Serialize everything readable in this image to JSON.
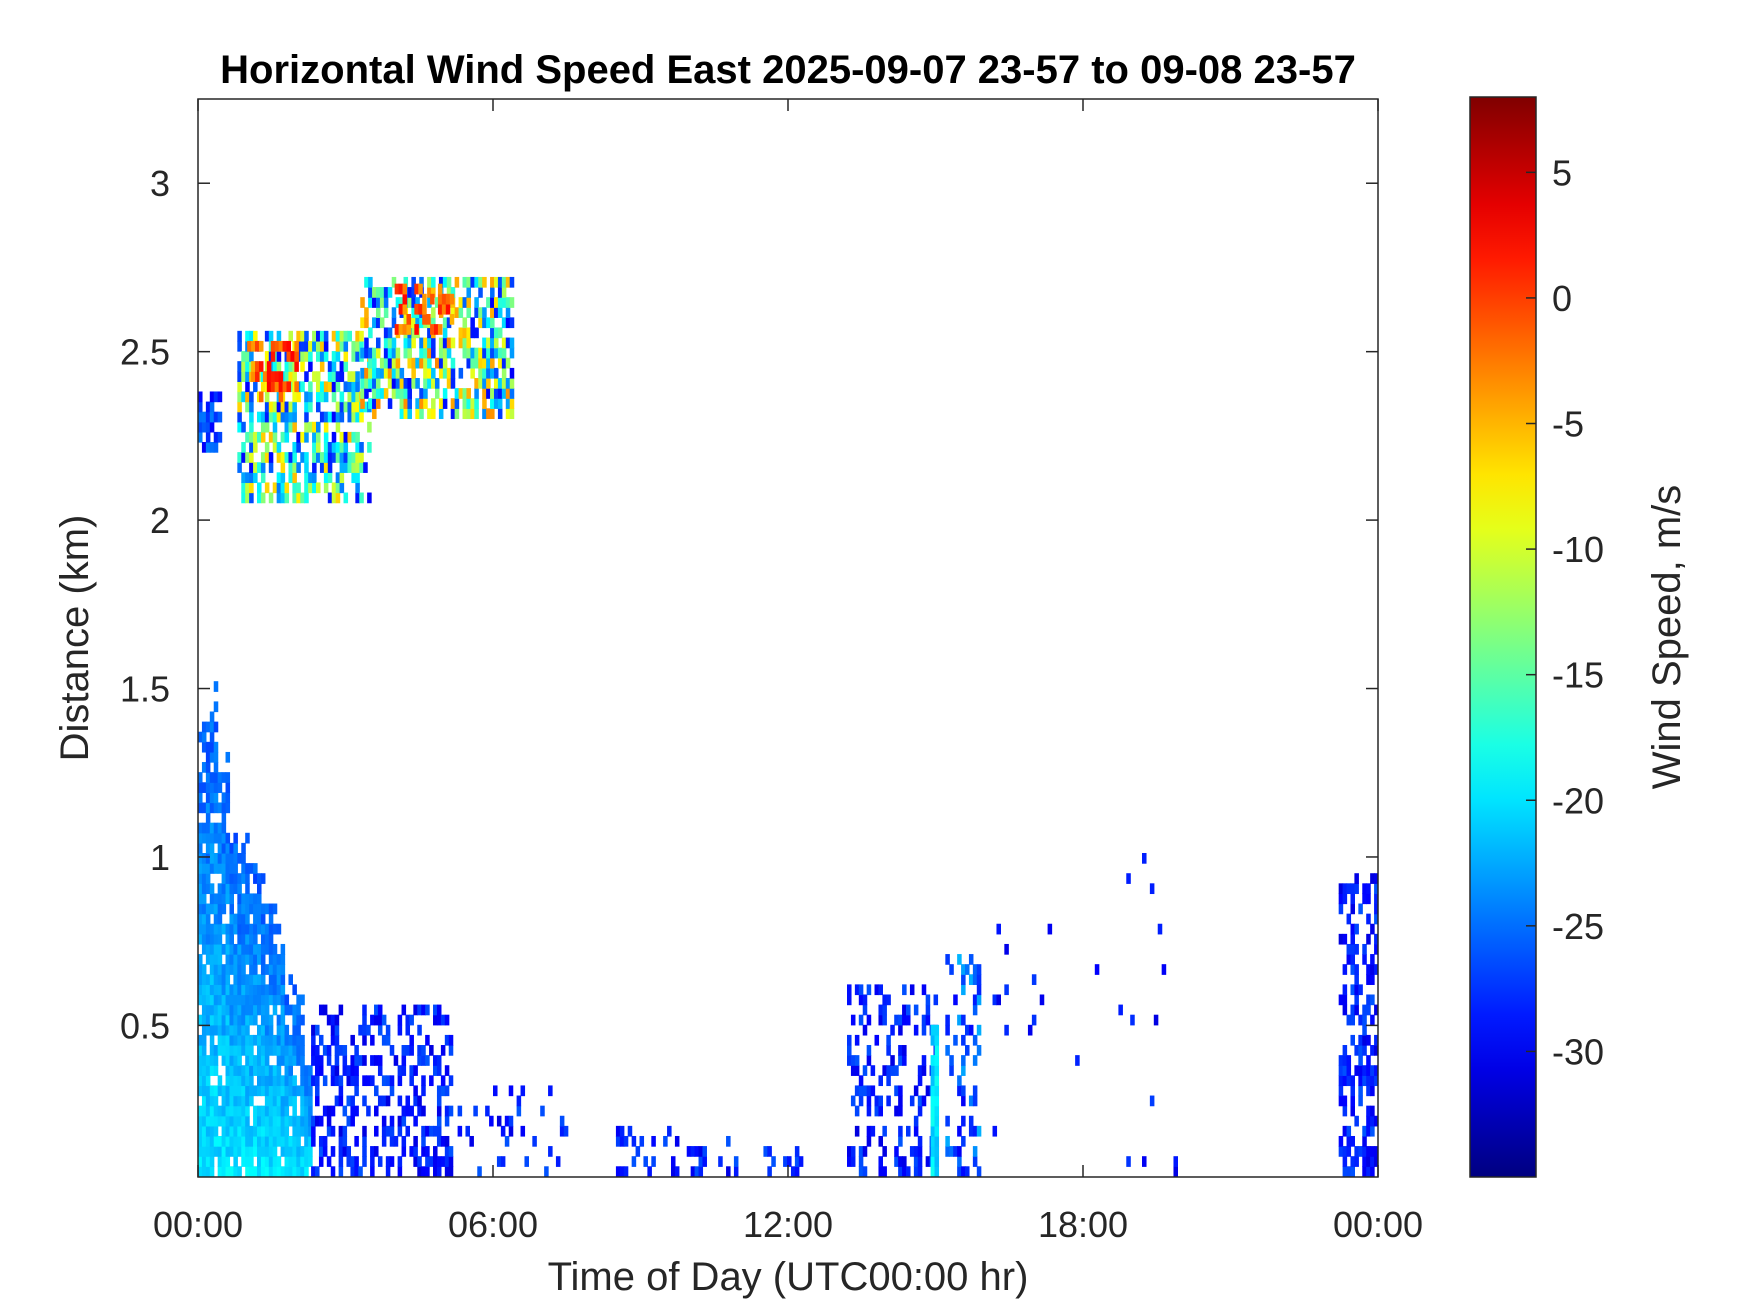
{
  "chart_data": {
    "type": "heatmap",
    "title": "Horizontal Wind Speed East 2025-09-07 23-57 to 09-08 23-57",
    "xlabel": "Time of Day (UTC00:00 hr)",
    "ylabel": "Distance (km)",
    "xlim": [
      0,
      24
    ],
    "ylim": [
      0.05,
      3.25
    ],
    "x_ticks": [
      0,
      6,
      12,
      18,
      24
    ],
    "x_tick_labels": [
      "00:00",
      "06:00",
      "12:00",
      "18:00",
      "00:00"
    ],
    "y_ticks": [
      0.5,
      1,
      1.5,
      2,
      2.5,
      3
    ],
    "y_tick_labels": [
      "0.5",
      "1",
      "1.5",
      "2",
      "2.5",
      "3"
    ],
    "colorbar": {
      "label": "Wind Speed, m/s",
      "colormap": "jet",
      "range": [
        -35,
        8
      ],
      "ticks": [
        -30,
        -25,
        -20,
        -15,
        -10,
        -5,
        0,
        5
      ],
      "tick_labels": [
        "-30",
        "-25",
        "-20",
        "-15",
        "-10",
        "-5",
        "0",
        "5"
      ]
    },
    "regions": [
      {
        "x": [
          0.0,
          2.3
        ],
        "y": [
          0.05,
          1.0
        ],
        "top_km": [
          1.4,
          1.5,
          1.3,
          1.1,
          1.05,
          1.0,
          0.95,
          0.85,
          0.8,
          0.65,
          0.6,
          0.4
        ],
        "value_range": [
          -26,
          -20
        ],
        "density": 0.9
      },
      {
        "x": [
          2.3,
          5.2
        ],
        "y": [
          0.05,
          0.55
        ],
        "value_range": [
          -31,
          -26
        ],
        "density": 0.45
      },
      {
        "x": [
          5.2,
          7.5
        ],
        "y": [
          0.05,
          0.3
        ],
        "value_range": [
          -31,
          -26
        ],
        "density": 0.12
      },
      {
        "x": [
          8.5,
          11.0
        ],
        "y": [
          0.05,
          0.2
        ],
        "value_range": [
          -31,
          -26
        ],
        "density": 0.3
      },
      {
        "x": [
          11.5,
          12.3
        ],
        "y": [
          0.05,
          0.13
        ],
        "value_range": [
          -31,
          -26
        ],
        "density": 0.35
      },
      {
        "x": [
          13.2,
          15.0
        ],
        "y": [
          0.05,
          0.6
        ],
        "value_range": [
          -31,
          -26
        ],
        "density": 0.35
      },
      {
        "x": [
          14.9,
          15.1
        ],
        "y": [
          0.05,
          0.5
        ],
        "value_range": [
          -22,
          -18
        ],
        "density": 0.95
      },
      {
        "x": [
          15.2,
          15.9
        ],
        "y": [
          0.05,
          0.7
        ],
        "value_range": [
          -30,
          -22
        ],
        "density": 0.3
      },
      {
        "x": [
          16.0,
          20.0
        ],
        "y": [
          0.05,
          1.0
        ],
        "value_range": [
          -31,
          -27
        ],
        "density": 0.015
      },
      {
        "x": [
          23.2,
          24.0
        ],
        "y": [
          0.05,
          0.95
        ],
        "value_range": [
          -31,
          -26
        ],
        "density": 0.5
      },
      {
        "x": [
          0.0,
          0.5
        ],
        "y": [
          2.2,
          2.35
        ],
        "value_range": [
          -30,
          -24
        ],
        "density": 0.6
      },
      {
        "x": [
          0.8,
          3.5
        ],
        "y": [
          2.05,
          2.55
        ],
        "value_range": [
          -30,
          -5
        ],
        "density": 0.6
      },
      {
        "x": [
          3.3,
          6.4
        ],
        "y": [
          2.3,
          2.7
        ],
        "value_range": [
          -30,
          -3
        ],
        "density": 0.65
      },
      {
        "x": [
          1.0,
          2.0
        ],
        "y": [
          2.35,
          2.52
        ],
        "value_range": [
          -5,
          3
        ],
        "density": 0.5
      },
      {
        "x": [
          4.0,
          5.2
        ],
        "y": [
          2.55,
          2.68
        ],
        "value_range": [
          -5,
          3
        ],
        "density": 0.5
      }
    ]
  }
}
